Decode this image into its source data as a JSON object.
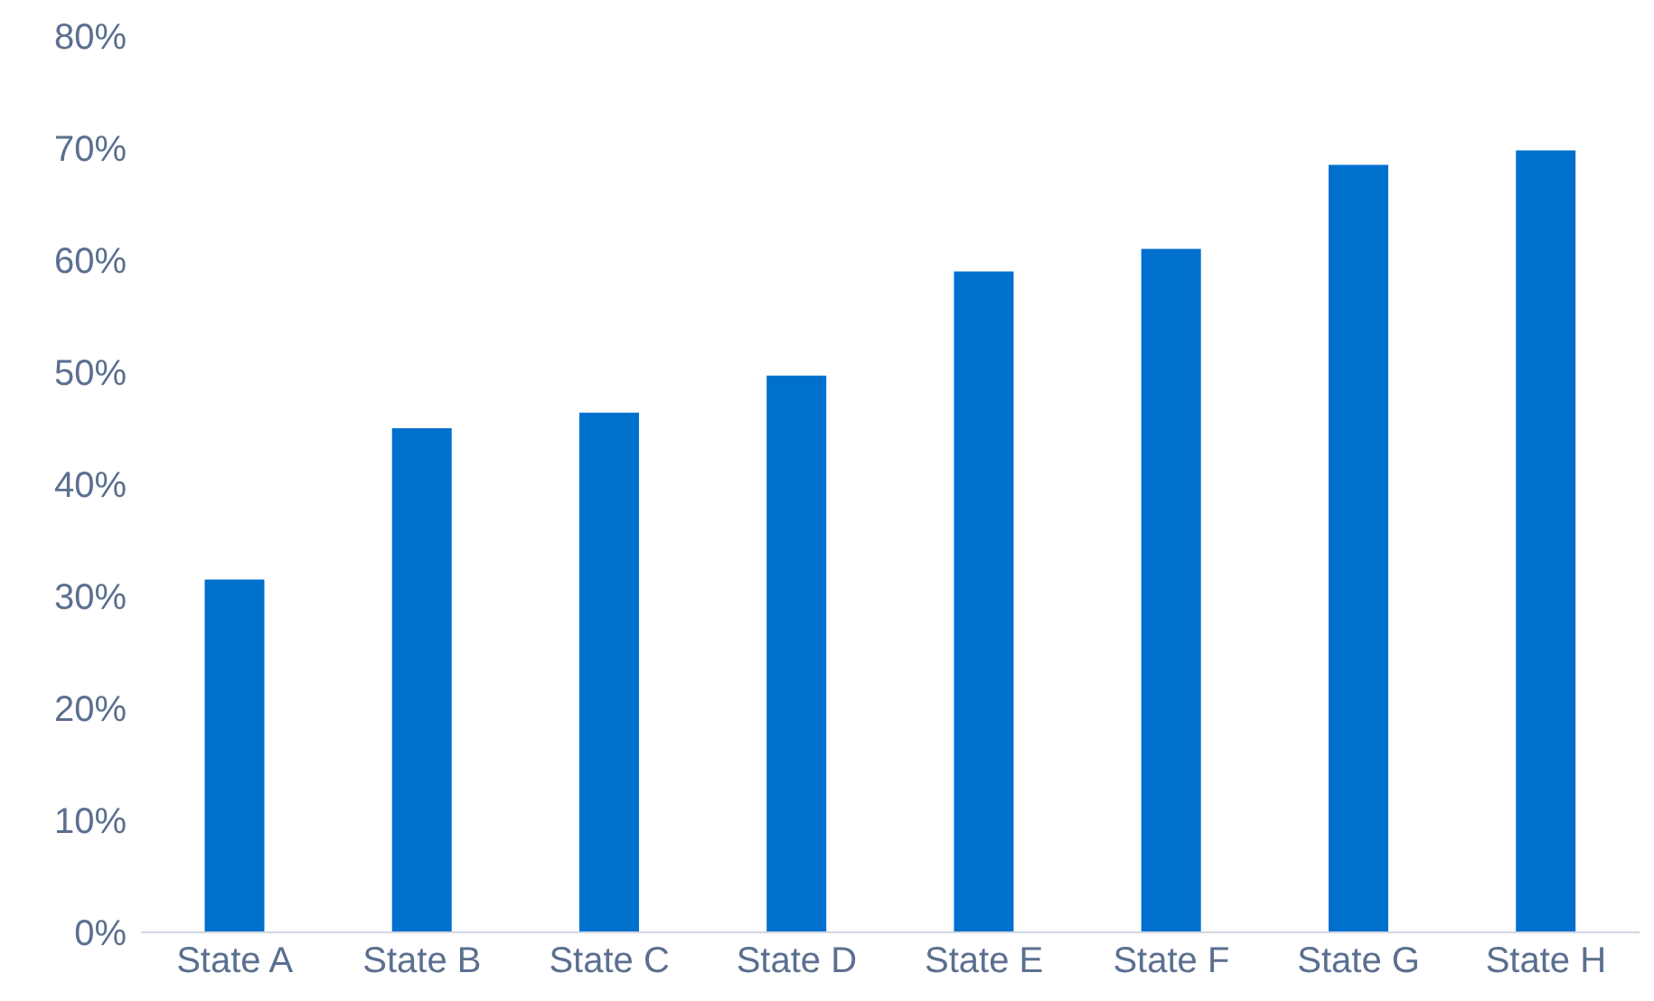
{
  "chart_data": {
    "type": "bar",
    "categories": [
      "State A",
      "State B",
      "State C",
      "State D",
      "State E",
      "State F",
      "State G",
      "State H"
    ],
    "values": [
      31.5,
      45,
      46.4,
      49.7,
      59,
      61,
      68.5,
      69.8
    ],
    "color": "#0070ce",
    "ylim": [
      0,
      80
    ],
    "yticks": [
      {
        "value": 0,
        "label": "0%"
      },
      {
        "value": 10,
        "label": "10%"
      },
      {
        "value": 20,
        "label": "20%"
      },
      {
        "value": 30,
        "label": "30%"
      },
      {
        "value": 40,
        "label": "40%"
      },
      {
        "value": 50,
        "label": "50%"
      },
      {
        "value": 60,
        "label": "60%"
      },
      {
        "value": 70,
        "label": "70%"
      },
      {
        "value": 80,
        "label": "80%"
      }
    ],
    "grid": false,
    "legend": false
  }
}
